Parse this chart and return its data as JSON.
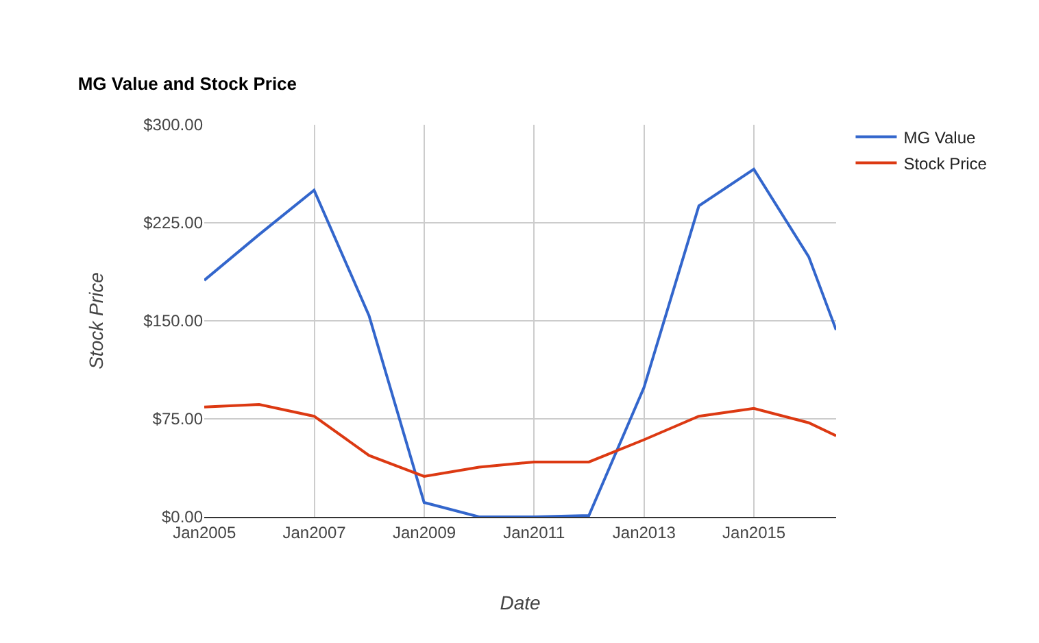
{
  "chart_data": {
    "type": "line",
    "title": "MG Value and Stock Price",
    "xlabel": "Date",
    "ylabel": "Stock Price",
    "x": [
      "2004-12-31",
      "2005-12-31",
      "2006-12-31",
      "2007-12-31",
      "2008-12-31",
      "2009-12-31",
      "2010-12-31",
      "2011-12-31",
      "2012-12-31",
      "2013-12-31",
      "2014-12-31",
      "2015-12-31",
      "2016-06-30"
    ],
    "series": [
      {
        "name": "MG Value",
        "color": "#3366cc",
        "values": [
          181,
          216,
          250,
          154,
          11,
          0,
          0,
          1,
          99,
          238,
          266,
          199,
          143
        ]
      },
      {
        "name": "Stock Price",
        "color": "#dc3912",
        "values": [
          84,
          86,
          77,
          47,
          31,
          38,
          42,
          42,
          59,
          77,
          83,
          72,
          62
        ]
      }
    ],
    "xlim": [
      "2004-12-31",
      "2016-06-30"
    ],
    "xticks": [
      {
        "value": "2005-01-01",
        "label": "Jan2005"
      },
      {
        "value": "2007-01-01",
        "label": "Jan2007"
      },
      {
        "value": "2009-01-01",
        "label": "Jan2009"
      },
      {
        "value": "2011-01-01",
        "label": "Jan2011"
      },
      {
        "value": "2013-01-01",
        "label": "Jan2013"
      },
      {
        "value": "2015-01-01",
        "label": "Jan2015"
      }
    ],
    "ylim": [
      0,
      300
    ],
    "yticks": [
      {
        "value": 0,
        "label": "$0.00"
      },
      {
        "value": 75,
        "label": "$75.00"
      },
      {
        "value": 150,
        "label": "$150.00"
      },
      {
        "value": 225,
        "label": "$225.00"
      },
      {
        "value": 300,
        "label": "$300.00"
      }
    ],
    "grid": true,
    "legend": "top right",
    "marker": "none",
    "line_style": "solid"
  }
}
